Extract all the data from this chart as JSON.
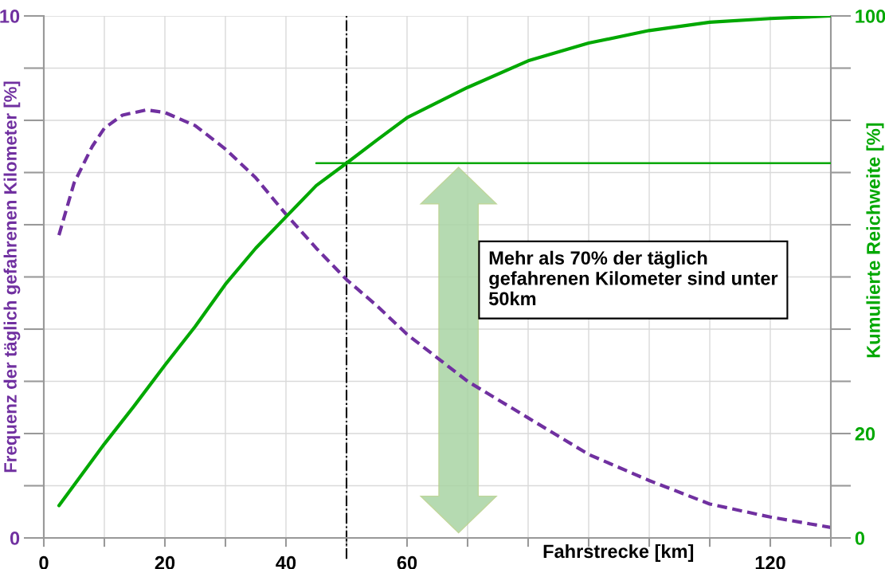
{
  "chart_data": {
    "type": "line",
    "xlabel": "Fahrstrecke [km]",
    "ylabel": "Frequenz der täglich gefahrenen Kilometer [%]",
    "y2label": "Kumulierte Reichweite [%]",
    "xlim": [
      0,
      130
    ],
    "xticks": [
      0,
      {
        "value": 10,
        "label": null
      },
      20,
      {
        "value": 30,
        "label": null
      },
      40,
      {
        "value": 50,
        "label": null
      },
      60,
      {
        "value": 70,
        "label": null
      },
      {
        "value": 80,
        "label": null
      },
      {
        "value": 90,
        "label": null
      },
      {
        "value": 100,
        "label": null
      },
      {
        "value": 110,
        "label": null
      },
      120,
      {
        "value": 130,
        "label": null
      }
    ],
    "ylim": [
      0,
      10
    ],
    "yticks": [
      0,
      {
        "value": 1,
        "label": null
      },
      {
        "value": 2,
        "label": null
      },
      {
        "value": 3,
        "label": null
      },
      {
        "value": 4,
        "label": null
      },
      {
        "value": 5,
        "label": null
      },
      {
        "value": 6,
        "label": null
      },
      {
        "value": 7,
        "label": null
      },
      {
        "value": 8,
        "label": null
      },
      {
        "value": 9,
        "label": null
      },
      10
    ],
    "y2lim": [
      0,
      100
    ],
    "y2ticks": [
      0,
      {
        "value": 10,
        "label": null
      },
      20,
      {
        "value": 30,
        "label": null
      },
      {
        "value": 40,
        "label": null
      },
      {
        "value": 50,
        "label": null
      },
      {
        "value": 60,
        "label": null
      },
      {
        "value": 70,
        "label": null
      },
      {
        "value": 80,
        "label": null
      },
      {
        "value": 90,
        "label": null
      },
      100
    ],
    "grid": true,
    "legend": false,
    "marker": "none",
    "series": [
      {
        "color": "#7030a0",
        "line_style": "dashed",
        "x": [
          2.5,
          5,
          8,
          10,
          13,
          17,
          20,
          25,
          30,
          35,
          40,
          45,
          50,
          55,
          60,
          65,
          70,
          80,
          90,
          100,
          110,
          120,
          130
        ],
        "values": [
          5.8,
          6.8,
          7.5,
          7.85,
          8.1,
          8.2,
          8.15,
          7.9,
          7.45,
          6.9,
          6.2,
          5.55,
          4.95,
          4.45,
          3.9,
          3.45,
          3.0,
          2.3,
          1.6,
          1.1,
          0.65,
          0.4,
          0.2
        ]
      },
      {
        "color": "#00a800",
        "line_style": "solid",
        "axis": "y2",
        "x": [
          2.5,
          10,
          15,
          20,
          25,
          30,
          35,
          40,
          45,
          50,
          55,
          60,
          70,
          80,
          90,
          100,
          110,
          120,
          130
        ],
        "values": [
          6.2,
          18,
          25.4,
          33.1,
          40.5,
          48.6,
          55.5,
          61.5,
          67.5,
          71.8,
          76.2,
          80.5,
          86.3,
          91.4,
          94.8,
          97.2,
          98.8,
          99.5,
          100
        ]
      },
      {
        "color": "#00a800",
        "line_style": "solid",
        "axis": "y2",
        "x": [
          45,
          130
        ],
        "values": [
          71.8,
          71.8
        ]
      }
    ],
    "ref_lines": [
      {
        "axis": "x",
        "value": 50,
        "color": "#000000",
        "line_style": "dashdot"
      }
    ],
    "annotations": [
      "Mehr als 70% der täglich gefahrenen Kilometer sind unter 50km"
    ]
  }
}
